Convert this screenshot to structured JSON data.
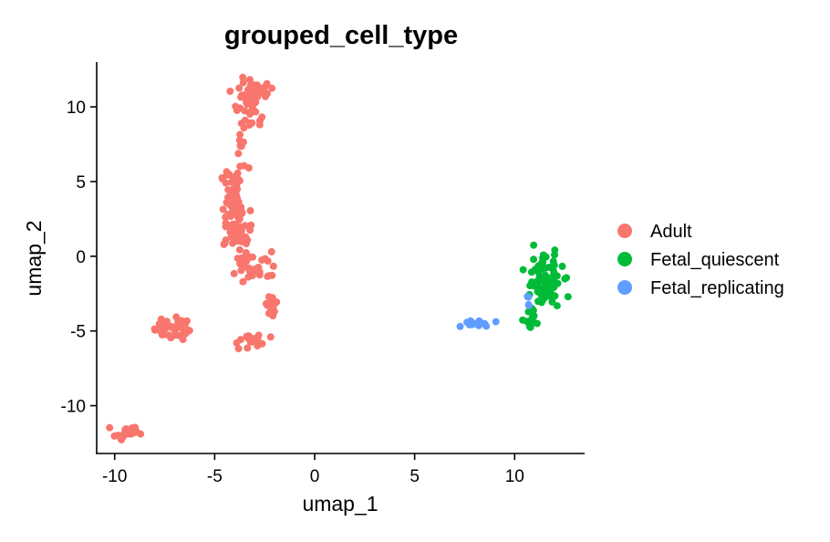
{
  "chart_data": {
    "type": "scatter",
    "title": "grouped_cell_type",
    "xlabel": "umap_1",
    "ylabel": "umap_2",
    "xlim": [
      -10.9,
      13.5
    ],
    "ylim": [
      -13.2,
      13.0
    ],
    "xticks": [
      -10,
      -5,
      0,
      5,
      10
    ],
    "xtick_labels": [
      "-10",
      "-5",
      "0",
      "5",
      "10"
    ],
    "yticks": [
      -10,
      -5,
      0,
      5,
      10
    ],
    "ytick_labels": [
      "-10",
      "-5",
      "0",
      "5",
      "10"
    ],
    "grid": false,
    "legend": "right",
    "series": [
      {
        "name": "Adult",
        "color": "#F8766D",
        "clusters": [
          {
            "cx": -4.0,
            "cy": 3.2,
            "sx": 0.35,
            "sy": 1.4,
            "n": 70
          },
          {
            "cx": -3.8,
            "cy": 1.2,
            "sx": 0.35,
            "sy": 0.8,
            "n": 25
          },
          {
            "cx": -3.2,
            "cy": 10.2,
            "sx": 0.4,
            "sy": 0.9,
            "n": 40
          },
          {
            "cx": -2.8,
            "cy": 11.3,
            "sx": 0.3,
            "sy": 0.3,
            "n": 15
          },
          {
            "cx": -3.7,
            "cy": 7.5,
            "sx": 0.15,
            "sy": 0.8,
            "n": 8
          },
          {
            "cx": -3.0,
            "cy": -0.7,
            "sx": 0.6,
            "sy": 0.5,
            "n": 30
          },
          {
            "cx": -2.1,
            "cy": -3.0,
            "sx": 0.2,
            "sy": 0.5,
            "n": 18
          },
          {
            "cx": -7.2,
            "cy": -4.8,
            "sx": 0.4,
            "sy": 0.4,
            "n": 40
          },
          {
            "cx": -3.2,
            "cy": -5.7,
            "sx": 0.5,
            "sy": 0.3,
            "n": 18
          },
          {
            "cx": -9.3,
            "cy": -11.8,
            "sx": 0.35,
            "sy": 0.2,
            "n": 18
          }
        ]
      },
      {
        "name": "Fetal_quiescent",
        "color": "#00BA38",
        "clusters": [
          {
            "cx": 11.5,
            "cy": -1.7,
            "sx": 0.45,
            "sy": 0.9,
            "n": 85
          },
          {
            "cx": 10.9,
            "cy": -4.3,
            "sx": 0.2,
            "sy": 0.4,
            "n": 12
          }
        ]
      },
      {
        "name": "Fetal_replicating",
        "color": "#619CFF",
        "clusters": [
          {
            "cx": 7.9,
            "cy": -4.5,
            "sx": 0.25,
            "sy": 0.15,
            "n": 14
          },
          {
            "cx": 9.0,
            "cy": -4.4,
            "sx": 0.05,
            "sy": 0.05,
            "n": 1
          },
          {
            "cx": 10.7,
            "cy": -2.5,
            "sx": 0.1,
            "sy": 0.3,
            "n": 4
          }
        ]
      }
    ]
  }
}
